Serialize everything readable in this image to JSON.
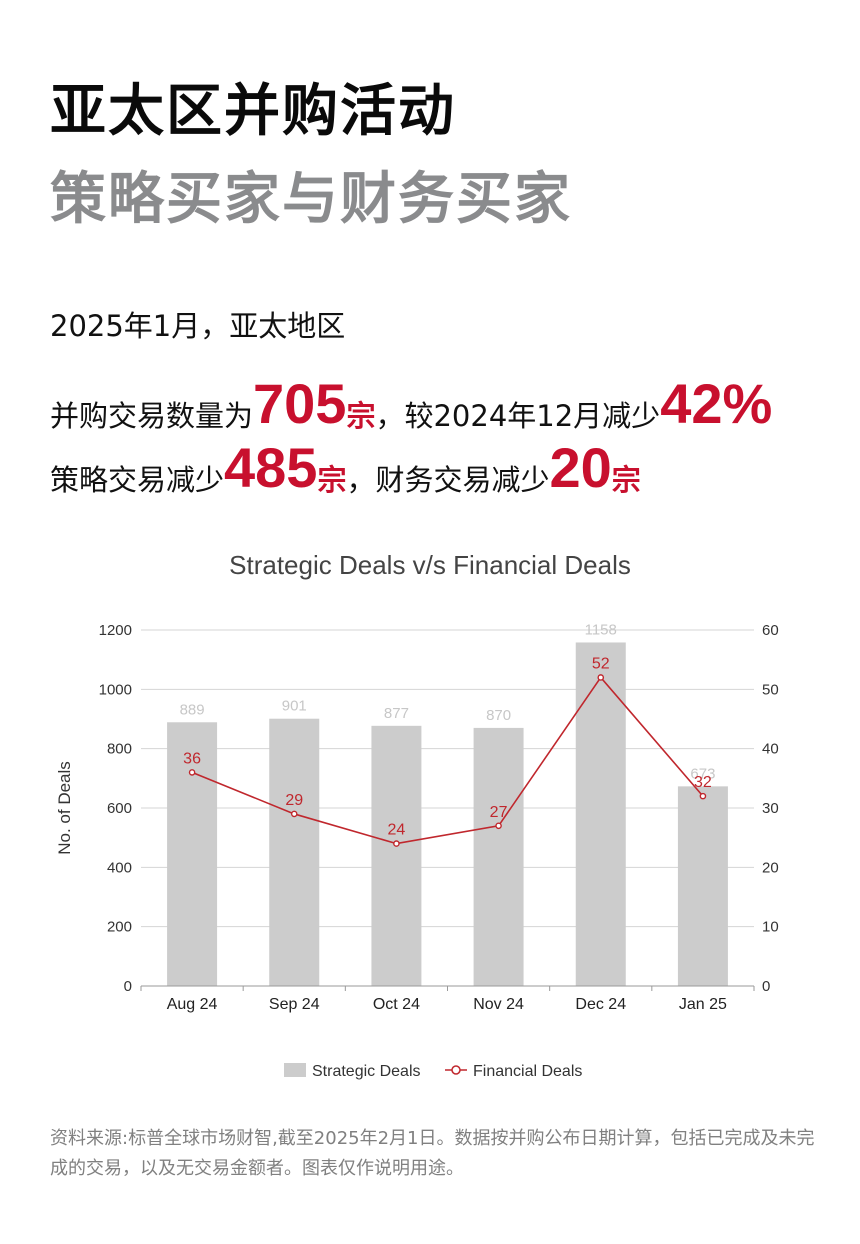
{
  "header": {
    "title": "亚太区并购活动",
    "subtitle": "策略买家与财务买家"
  },
  "summary": {
    "line1": "2025年1月，亚太地区",
    "line2_pre": "并购交易数量为",
    "line2_num": "705",
    "line2_unit": "宗",
    "line2_mid": "，较2024年12月减少",
    "line2_pct": "42%",
    "line3_pre": "策略交易减少",
    "line3_num1": "485",
    "line3_unit1": "宗",
    "line3_mid": "，财务交易减少",
    "line3_num2": "20",
    "line3_unit2": "宗"
  },
  "colors": {
    "accent": "#c8102e",
    "bar": "#cccccc",
    "line": "#c0272d",
    "subtitle": "#8a8b8d"
  },
  "chart_data": {
    "type": "bar",
    "title": "Strategic Deals v/s Financial Deals",
    "categories": [
      "Aug 24",
      "Sep 24",
      "Oct 24",
      "Nov 24",
      "Dec 24",
      "Jan 25"
    ],
    "ylabel": "No. of Deals",
    "ylim": [
      0,
      1200
    ],
    "yticks": [
      0,
      200,
      400,
      600,
      800,
      1000,
      1200
    ],
    "y2lim": [
      0,
      60
    ],
    "y2ticks": [
      0,
      10,
      20,
      30,
      40,
      50,
      60
    ],
    "grid": true,
    "legend_position": "bottom",
    "series": [
      {
        "name": "Strategic Deals",
        "type": "bar",
        "axis": "left",
        "values": [
          889,
          901,
          877,
          870,
          1158,
          673
        ]
      },
      {
        "name": "Financial Deals",
        "type": "line",
        "axis": "right",
        "values": [
          36,
          29,
          24,
          27,
          52,
          32
        ]
      }
    ]
  },
  "footnote": "资料来源:标普全球市场财智,截至2025年2月1日。数据按并购公布日期计算，包括已完成及未完成的交易，以及无交易金额者。图表仅作说明用途。"
}
